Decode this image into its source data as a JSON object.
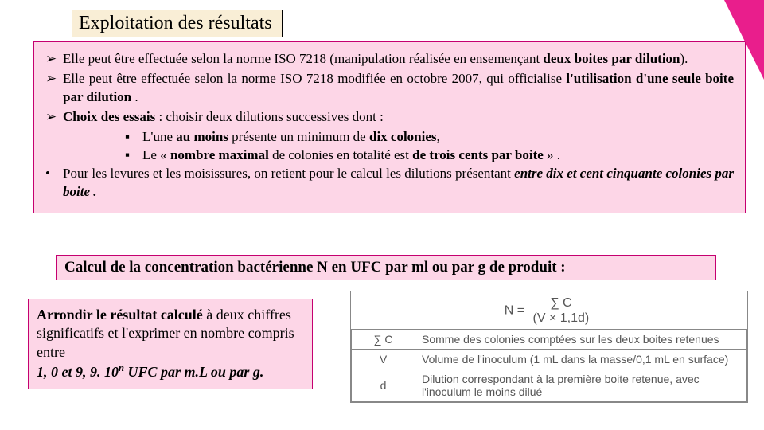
{
  "title": "Exploitation des résultats",
  "bullets": {
    "b1_pre": "Elle peut être effectuée selon la norme ISO 7218 (manipulation réalisée en ensemençant ",
    "b1_bold": "deux boites par dilution",
    "b1_post": ").",
    "b2_pre": "Elle peut être effectuée selon la norme ISO 7218 modifiée en octobre 2007, qui officialise ",
    "b2_bold": "l'utilisation d'une seule boite par dilution",
    "b2_post": " .",
    "b3_bold1": "Choix des essais",
    "b3_mid": " : choisir deux dilutions successives dont :",
    "s1_pre": "L'une ",
    "s1_b1": "au moins",
    "s1_mid": " présente un minimum de ",
    "s1_b2": "dix colonies",
    "s1_post": ",",
    "s2_pre": " Le « ",
    "s2_b1": "nombre maximal",
    "s2_mid": " de colonies en totalité est ",
    "s2_b2": "de trois cents par boite",
    "s2_post": " » .",
    "b4_pre": " Pour les levures et les moisissures, on retient pour le calcul les dilutions présentant ",
    "b4_bi": "entre dix et cent cinquante colonies par boite .",
    "chevron": "➢",
    "square": "▪",
    "dot": "•"
  },
  "calc": "Calcul de la concentration bactérienne N en UFC par ml ou par g de produit :",
  "round": {
    "l1_b": "Arrondir le résultat calculé",
    "l1_r": " à deux chiffres significatifs et l'exprimer en nombre compris entre",
    "l2_b1": "1, 0 et 9, 9. 10",
    "l2_sup": "n",
    "l2_b2": " UFC par m.L ou par g."
  },
  "formula": {
    "eq_lhs": "N = ",
    "eq_num": "∑ C",
    "eq_den": "(V × 1,1d)",
    "r1_sym": "∑ C",
    "r1_txt": "Somme des colonies comptées sur les deux boites retenues",
    "r2_sym": "V",
    "r2_txt": "Volume de l'inoculum (1 mL dans la masse/0,1 mL en surface)",
    "r3_sym": "d",
    "r3_txt": "Dilution correspondant à la première boite retenue, avec l'inoculum le moins dilué"
  },
  "colors": {
    "pink_bg": "#fdd6e7",
    "pink_border": "#c50070",
    "cream": "#f9eed6",
    "magenta": "#e91e8c"
  }
}
